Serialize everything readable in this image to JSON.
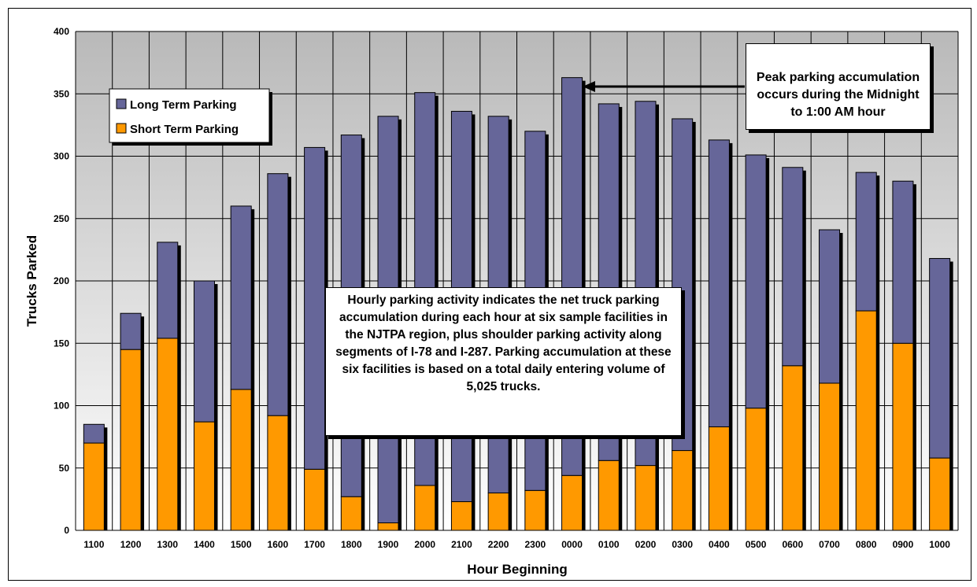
{
  "chart_data": {
    "type": "bar",
    "stacked": true,
    "xlabel": "Hour Beginning",
    "ylabel": "Trucks Parked",
    "ylim": [
      0,
      400
    ],
    "yticks": [
      0,
      50,
      100,
      150,
      200,
      250,
      300,
      350,
      400
    ],
    "grid": true,
    "legend_position": "top-left",
    "categories": [
      "1100",
      "1200",
      "1300",
      "1400",
      "1500",
      "1600",
      "1700",
      "1800",
      "1900",
      "2000",
      "2100",
      "2200",
      "2300",
      "0000",
      "0100",
      "0200",
      "0300",
      "0400",
      "0500",
      "0600",
      "0700",
      "0800",
      "0900",
      "1000"
    ],
    "series": [
      {
        "name": "Short Term Parking",
        "color": "#ff9900",
        "values": [
          70,
          145,
          154,
          87,
          113,
          92,
          49,
          27,
          6,
          36,
          23,
          30,
          32,
          44,
          56,
          52,
          64,
          83,
          98,
          132,
          118,
          176,
          150,
          58
        ]
      },
      {
        "name": "Long Term Parking",
        "color": "#666699",
        "values": [
          15,
          29,
          77,
          113,
          147,
          194,
          258,
          290,
          326,
          315,
          313,
          302,
          288,
          319,
          286,
          292,
          266,
          230,
          203,
          159,
          123,
          111,
          130,
          160
        ]
      }
    ],
    "legend_order": [
      "Long Term Parking",
      "Short Term Parking"
    ],
    "annotations": [
      "Peak parking accumulation occurs during the Midnight to 1:00 AM hour",
      "Hourly parking activity indicates the net truck parking accumulation during each hour at six sample facilities in the NJTPA region, plus shoulder parking activity along segments of I-78 and I-287.  Parking accumulation at these six facilities is based on a total daily entering volume of 5,025 trucks."
    ]
  }
}
